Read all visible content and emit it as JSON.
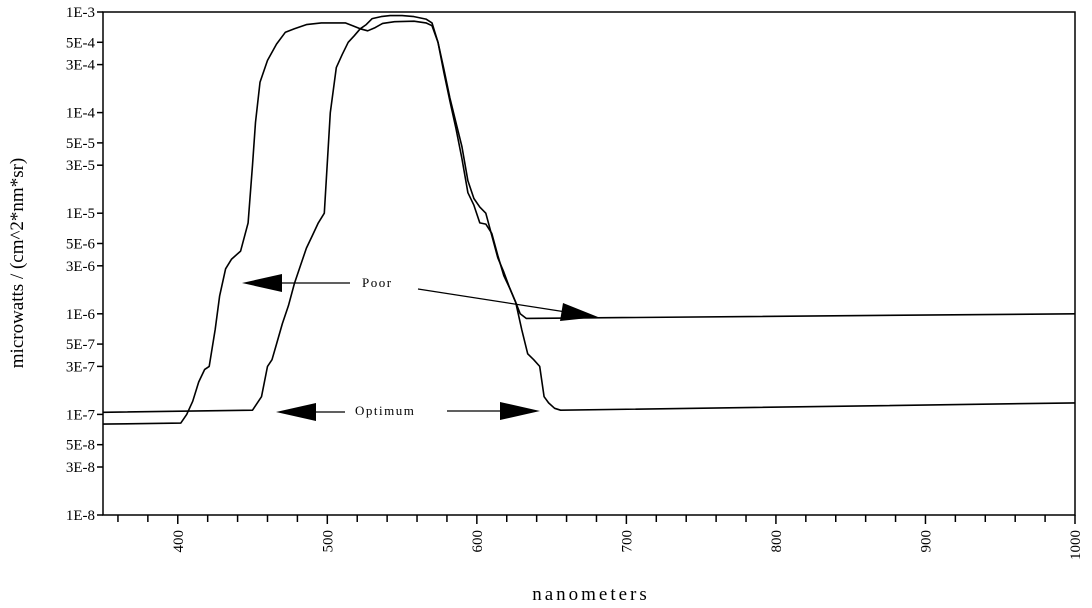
{
  "chart_data": {
    "type": "line",
    "title": "",
    "xlabel": "nanometers",
    "ylabel": "microwatts / (cm^2*nm*sr)",
    "xlim": [
      350,
      1000
    ],
    "ylim": [
      1e-08,
      0.001
    ],
    "y_scale": "log",
    "grid": false,
    "legend": "none",
    "x_ticks": [
      400,
      500,
      600,
      700,
      800,
      900,
      1000
    ],
    "x_tick_labels": [
      "400",
      "500",
      "600",
      "700",
      "800",
      "900",
      "1000"
    ],
    "y_ticks": [
      0.001,
      0.0005,
      0.0003,
      0.0001,
      5e-05,
      3e-05,
      1e-05,
      5e-06,
      3e-06,
      1e-06,
      5e-07,
      3e-07,
      1e-07,
      5e-08,
      3e-08,
      1e-08
    ],
    "y_tick_labels": [
      "1E-3",
      "5E-4",
      "3E-4",
      "1E-4",
      "5E-5",
      "3E-5",
      "1E-5",
      "5E-6",
      "3E-6",
      "1E-6",
      "5E-7",
      "3E-7",
      "1E-7",
      "5E-8",
      "3E-8",
      "1E-8"
    ],
    "series": [
      {
        "x": [
          350,
          402,
          406,
          410,
          414,
          418,
          421,
          425,
          428,
          432,
          436,
          442,
          447,
          450,
          452,
          455,
          460,
          466,
          472,
          478,
          486,
          496,
          512,
          517,
          522,
          527,
          532,
          537,
          545,
          558,
          566,
          570,
          574,
          578,
          582,
          586,
          590,
          594,
          598,
          602,
          606,
          610,
          614,
          618,
          622,
          626,
          629,
          633,
          1000
        ],
        "y": [
          8e-08,
          8.2e-08,
          1e-07,
          1.35e-07,
          2.1e-07,
          2.8e-07,
          3e-07,
          7e-07,
          1.5e-06,
          2.8e-06,
          3.5e-06,
          4.2e-06,
          8e-06,
          3e-05,
          8e-05,
          0.0002,
          0.00033,
          0.00048,
          0.00063,
          0.00068,
          0.00075,
          0.00078,
          0.00078,
          0.00073,
          0.00068,
          0.00065,
          0.0007,
          0.00077,
          0.0008,
          0.00081,
          0.00078,
          0.00073,
          0.0005,
          0.00025,
          0.00013,
          7e-05,
          3.5e-05,
          1.6e-05,
          1.2e-05,
          8e-06,
          7.8e-06,
          6.3e-06,
          3.8e-06,
          2.4e-06,
          1.8e-06,
          1.3e-06,
          1e-06,
          9e-07,
          1e-06
        ]
      },
      {
        "x": [
          350,
          450,
          456,
          460,
          463,
          466,
          470,
          474,
          478,
          482,
          486,
          490,
          494,
          498,
          502,
          506,
          510,
          514,
          518,
          522,
          526,
          530,
          536,
          542,
          550,
          558,
          566,
          570,
          574,
          578,
          582,
          586,
          590,
          594,
          598,
          602,
          606,
          610,
          614,
          618,
          622,
          626,
          630,
          634,
          638,
          642,
          645,
          648,
          652,
          656,
          1000
        ],
        "y": [
          1.05e-07,
          1.1e-07,
          1.5e-07,
          3e-07,
          3.5e-07,
          5e-07,
          8e-07,
          1.2e-06,
          2e-06,
          3e-06,
          4.5e-06,
          6e-06,
          8e-06,
          1e-05,
          0.0001,
          0.00028,
          0.00038,
          0.0005,
          0.00058,
          0.00068,
          0.00075,
          0.00086,
          0.0009,
          0.00092,
          0.00092,
          0.0009,
          0.00085,
          0.00078,
          0.0005,
          0.00027,
          0.00014,
          8e-05,
          4.6e-05,
          2.1e-05,
          1.4e-05,
          1.15e-05,
          1e-05,
          6e-06,
          3.6e-06,
          2.6e-06,
          1.8e-06,
          1.3e-06,
          7e-07,
          4e-07,
          3.5e-07,
          3e-07,
          1.5e-07,
          1.3e-07,
          1.15e-07,
          1.1e-07,
          1.3e-07
        ]
      }
    ],
    "annotations": [
      {
        "text": "Poor",
        "x": 430,
        "y": 2.4e-06
      },
      {
        "text": "Optimum",
        "x": 420,
        "y": 1.12e-07
      }
    ]
  }
}
